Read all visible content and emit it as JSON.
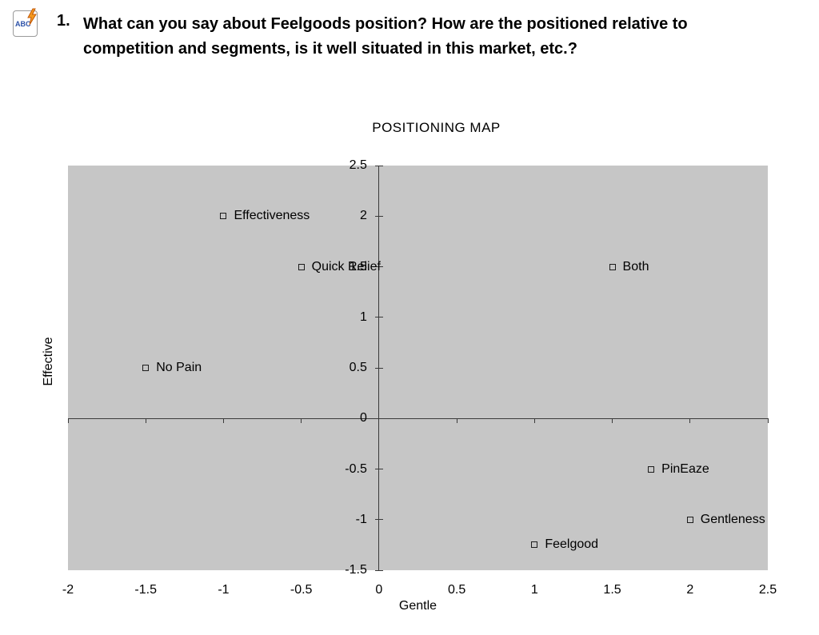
{
  "question": {
    "number": "1.",
    "line1": "What can you say about Feelgoods position? How are the positioned relative to",
    "line2": "competition and segments, is it well situated in this market, etc.?",
    "icon_text": "ABC"
  },
  "chart_data": {
    "type": "scatter",
    "title": "POSITIONING MAP",
    "xlabel": "Gentle",
    "ylabel": "Effective",
    "xlim": [
      -2,
      2.5
    ],
    "ylim": [
      -1.5,
      2.5
    ],
    "x_ticks": [
      -2,
      -1.5,
      -1,
      -0.5,
      0,
      0.5,
      1,
      1.5,
      2,
      2.5
    ],
    "y_ticks": [
      2.5,
      2,
      1.5,
      1,
      0.5,
      0,
      -0.5,
      -1,
      -1.5
    ],
    "grid": false,
    "legend": "none",
    "plot_bg_color": "#c6c6c6",
    "axis_color": "#3a3a3a",
    "points": [
      {
        "label": "Effectiveness",
        "x": -1,
        "y": 2
      },
      {
        "label": "Quick Relief",
        "x": -0.5,
        "y": 1.5
      },
      {
        "label": "Both",
        "x": 1.5,
        "y": 1.5
      },
      {
        "label": "No Pain",
        "x": -1.5,
        "y": 0.5
      },
      {
        "label": "PinEaze",
        "x": 1.75,
        "y": -0.5
      },
      {
        "label": "Gentleness",
        "x": 2,
        "y": -1
      },
      {
        "label": "Feelgood",
        "x": 1,
        "y": -1.25
      }
    ]
  }
}
